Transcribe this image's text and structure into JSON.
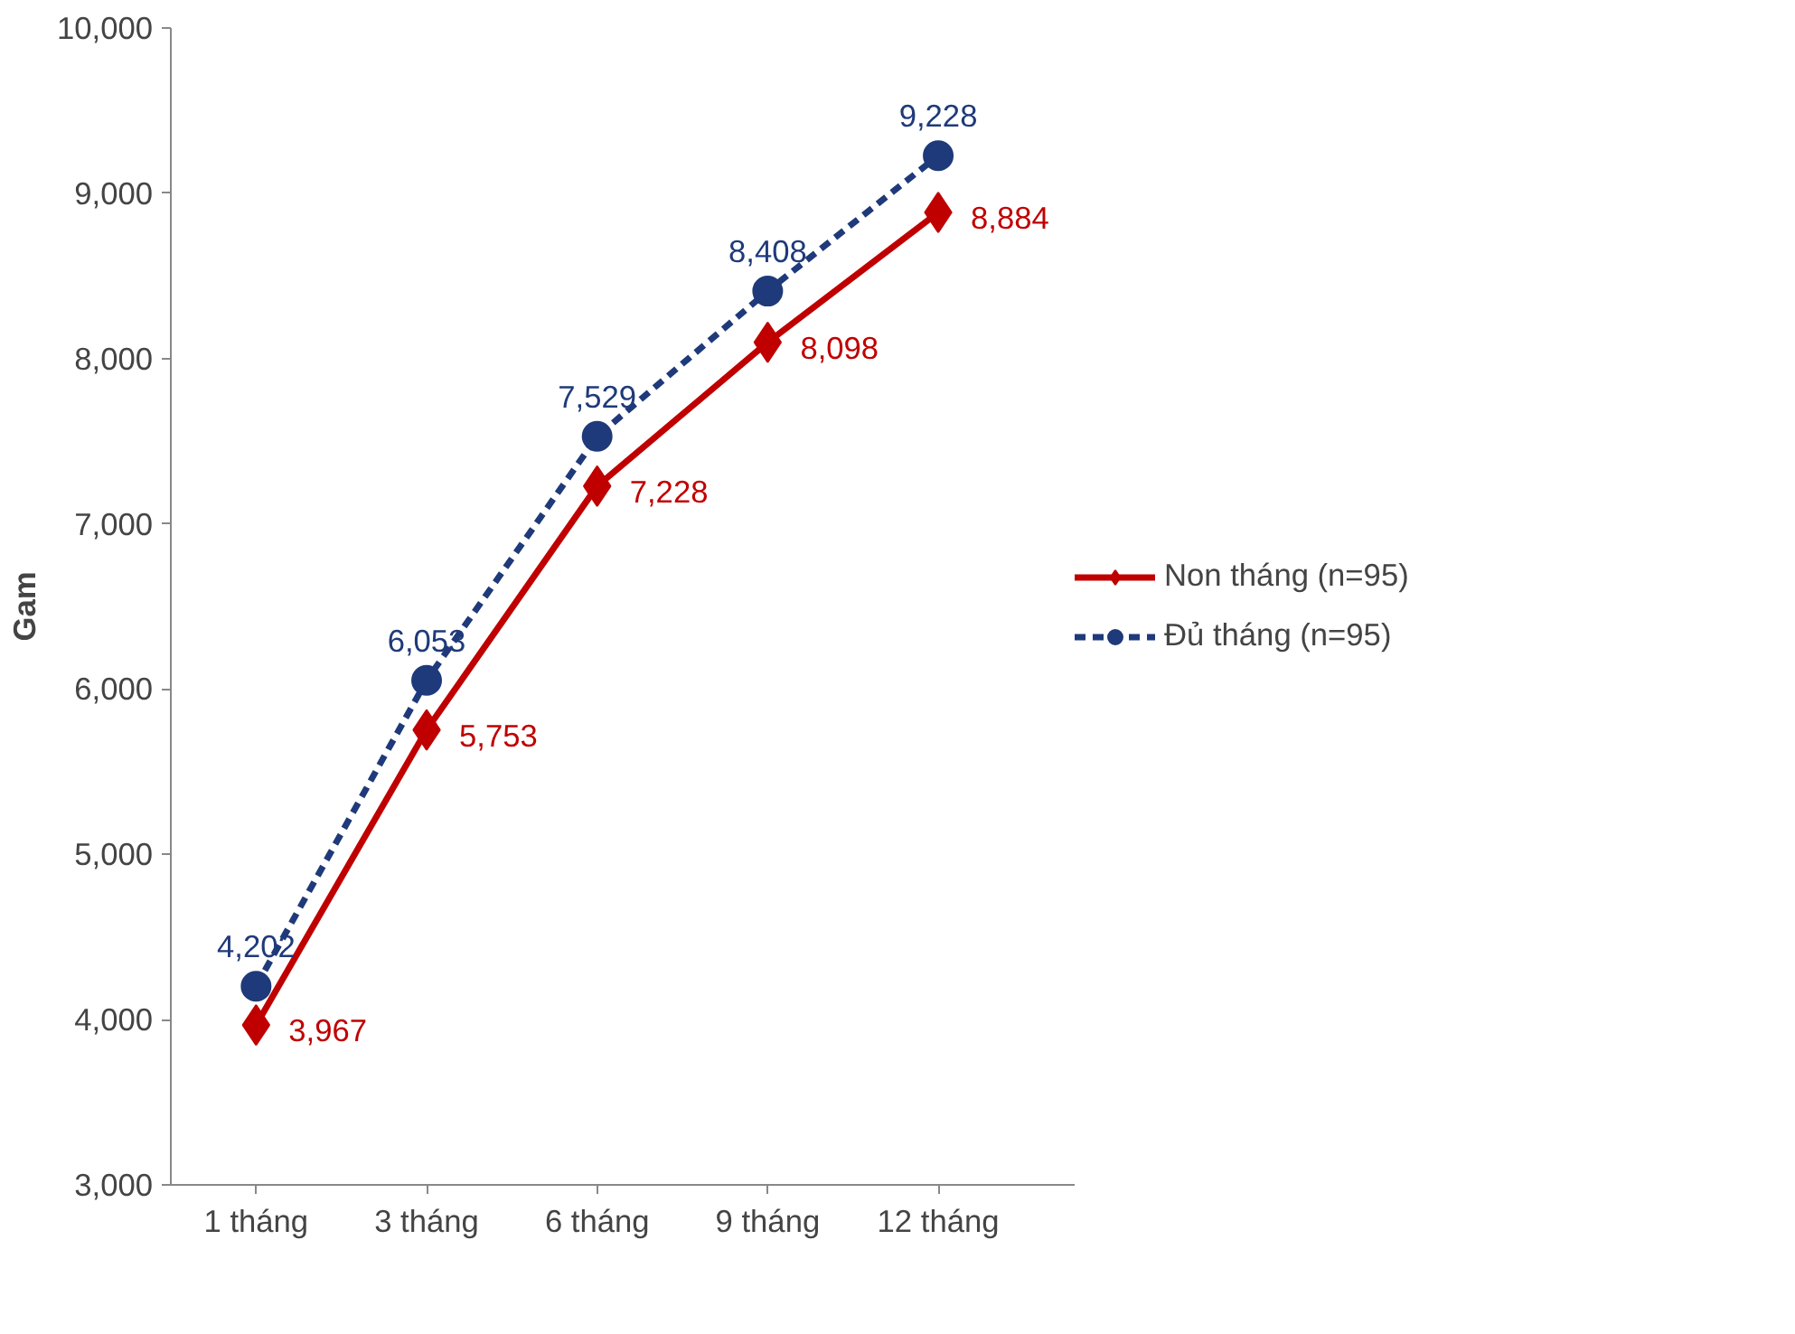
{
  "chart_data": {
    "type": "line",
    "ylabel": "Gam",
    "categories": [
      "1 tháng",
      "3 tháng",
      "6 tháng",
      "9 tháng",
      "12 tháng"
    ],
    "series": [
      {
        "name": "Non tháng (n=95)",
        "color": "#c00000",
        "values": [
          3967,
          5753,
          7228,
          8098,
          8884
        ],
        "value_labels": [
          "3,967",
          "5,753",
          "7,228",
          "8,098",
          "8,884"
        ],
        "marker": "diamond",
        "line_style": "solid"
      },
      {
        "name": "Đủ tháng (n=95)",
        "color": "#1f3a7a",
        "values": [
          4202,
          6053,
          7529,
          8408,
          9228
        ],
        "value_labels": [
          "4,202",
          "6,053",
          "7,529",
          "8,408",
          "9,228"
        ],
        "marker": "circle",
        "line_style": "dashed"
      }
    ],
    "ylim": [
      3000,
      10000
    ],
    "yticks": [
      {
        "value": 3000,
        "label": "3,000"
      },
      {
        "value": 4000,
        "label": "4,000"
      },
      {
        "value": 5000,
        "label": "5,000"
      },
      {
        "value": 6000,
        "label": "6,000"
      },
      {
        "value": 7000,
        "label": "7,000"
      },
      {
        "value": 8000,
        "label": "8,000"
      },
      {
        "value": 9000,
        "label": "9,000"
      },
      {
        "value": 10000,
        "label": "10,000"
      }
    ],
    "grid": false,
    "legend": "right"
  }
}
